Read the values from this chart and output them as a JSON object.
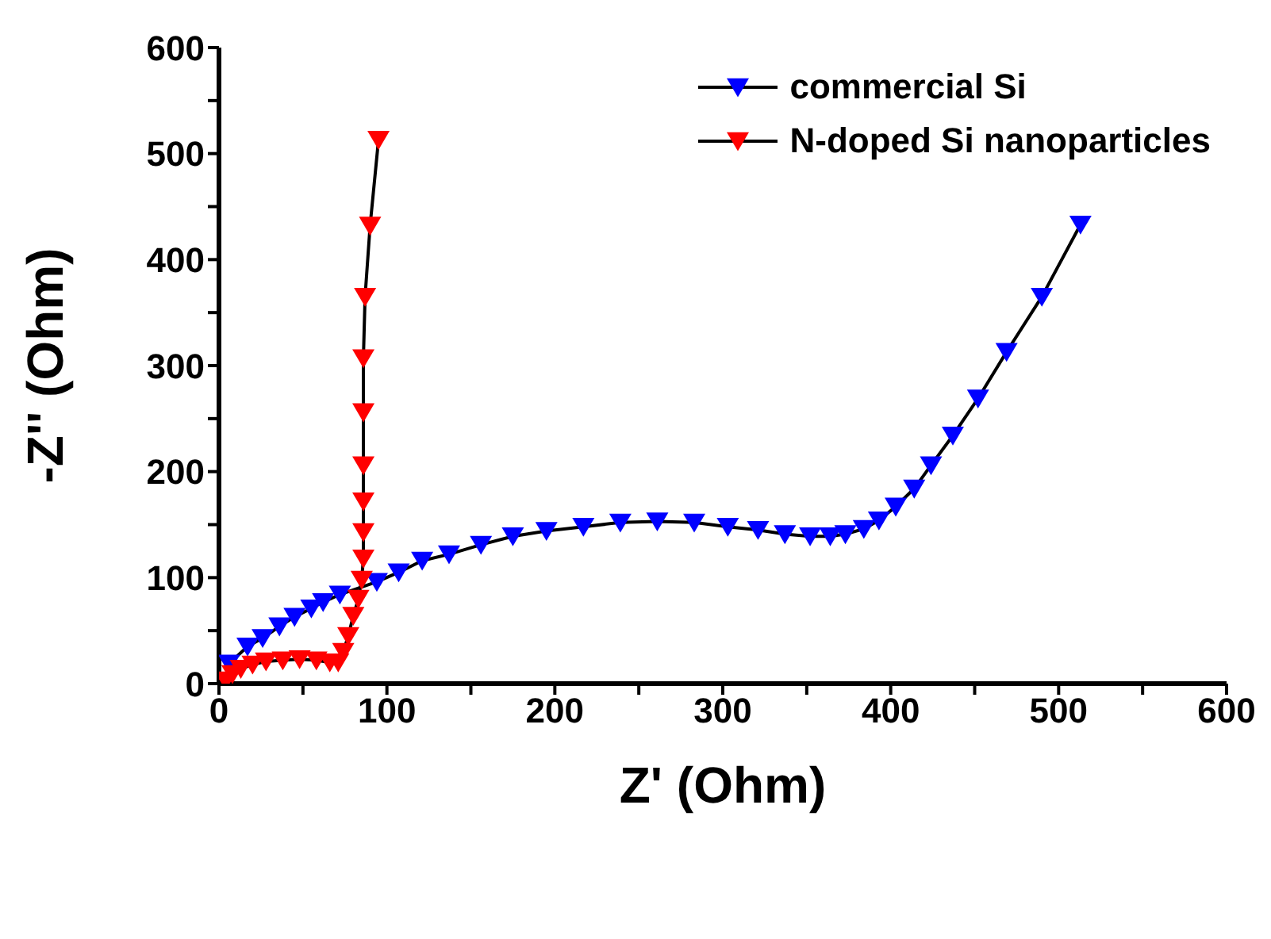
{
  "chart_data": {
    "type": "line",
    "xlabel": "Z' (Ohm)",
    "ylabel": "-Z'' (Ohm)",
    "xlim": [
      0,
      600
    ],
    "ylim": [
      0,
      600
    ],
    "xticks": [
      0,
      {
        "value": 50,
        "label": null
      },
      100,
      {
        "value": 150,
        "label": null
      },
      200,
      {
        "value": 250,
        "label": null
      },
      300,
      {
        "value": 350,
        "label": null
      },
      400,
      {
        "value": 450,
        "label": null
      },
      500,
      {
        "value": 550,
        "label": null
      },
      600
    ],
    "yticks": [
      0,
      {
        "value": 50,
        "label": null
      },
      100,
      {
        "value": 150,
        "label": null
      },
      200,
      {
        "value": 250,
        "label": null
      },
      300,
      {
        "value": 350,
        "label": null
      },
      400,
      {
        "value": 450,
        "label": null
      },
      500,
      {
        "value": 550,
        "label": null
      },
      600
    ],
    "grid": false,
    "legend": "top right",
    "marker": "triangle",
    "line_style": "solid",
    "series": [
      {
        "name": "commercial Si",
        "color": "#0000ff",
        "x": [
          6,
          17,
          26,
          36,
          45,
          55,
          62,
          72,
          94,
          107,
          121,
          137,
          156,
          175,
          195,
          217,
          239,
          261,
          283,
          303,
          321,
          337,
          352,
          364,
          373,
          384,
          393,
          403,
          414,
          424,
          437,
          452,
          469,
          490,
          513
        ],
        "values": [
          19,
          35,
          43,
          54,
          63,
          71,
          77,
          84,
          96,
          105,
          116,
          122,
          131,
          139,
          144,
          148,
          152,
          153,
          152,
          148,
          145,
          141,
          139,
          139,
          141,
          146,
          154,
          167,
          184,
          206,
          234,
          269,
          313,
          365,
          433
        ]
      },
      {
        "name": "N-doped Si  nanoparticles",
        "color": "#ff0000",
        "x": [
          4,
          8,
          13,
          20,
          28,
          38,
          48,
          58,
          66,
          71,
          74,
          77,
          80,
          83,
          85,
          86,
          86,
          86,
          86,
          86,
          86,
          87,
          90,
          95
        ],
        "values": [
          3,
          9,
          14,
          18,
          21,
          22,
          23,
          22,
          20,
          20,
          30,
          45,
          64,
          80,
          98,
          118,
          143,
          172,
          206,
          256,
          307,
          365,
          432,
          513
        ]
      }
    ]
  }
}
